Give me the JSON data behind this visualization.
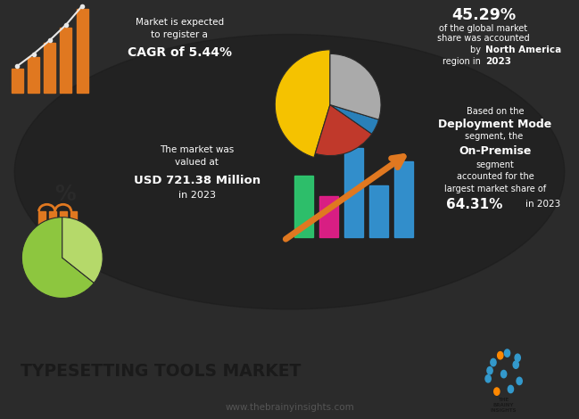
{
  "bg_color": "#2b2b2b",
  "footer_bg": "#e8e8e8",
  "title": "TYPESETTING TOOLS MARKET",
  "website": "www.thebrainyinsights.com",
  "cagr_text_line1": "Market is expected",
  "cagr_text_line2": "to register a",
  "cagr_bold": "CAGR of 5.44%",
  "pie_title_pct": "45.29%",
  "pie_title_text1": "of the global market",
  "pie_title_text2": "share was accounted",
  "pie_title_bold": "North America",
  "pie_title_year": "2023",
  "pie_slices": [
    45.29,
    20.0,
    5.0,
    29.71
  ],
  "pie_colors": [
    "#f5c200",
    "#c0392b",
    "#2980b9",
    "#aaaaaa"
  ],
  "market_text1": "The market was",
  "market_text2": "valued at",
  "market_bold": "USD 721.38 Million",
  "market_year": "in 2023",
  "deployment_text1": "Based on the",
  "deployment_bold1": "Deployment Mode",
  "deployment_text2": "segment, the ",
  "deployment_bold2": "On-Premise",
  "deployment_text3": "segment",
  "deployment_text4": "accounted for the",
  "deployment_text5": "largest market share of",
  "deployment_pct": "64.31%",
  "deployment_year": "in 2023",
  "col_bar_x": [
    5.25,
    5.68,
    6.11,
    6.54,
    6.97
  ],
  "col_bar_h": [
    1.8,
    1.2,
    2.6,
    1.5,
    2.2
  ],
  "col_colors": [
    "#2ecc71",
    "#e91e8c",
    "#3498db",
    "#3498db",
    "#3498db"
  ],
  "orange": "#e07820",
  "white": "#ffffff",
  "light_gray": "#cccccc"
}
